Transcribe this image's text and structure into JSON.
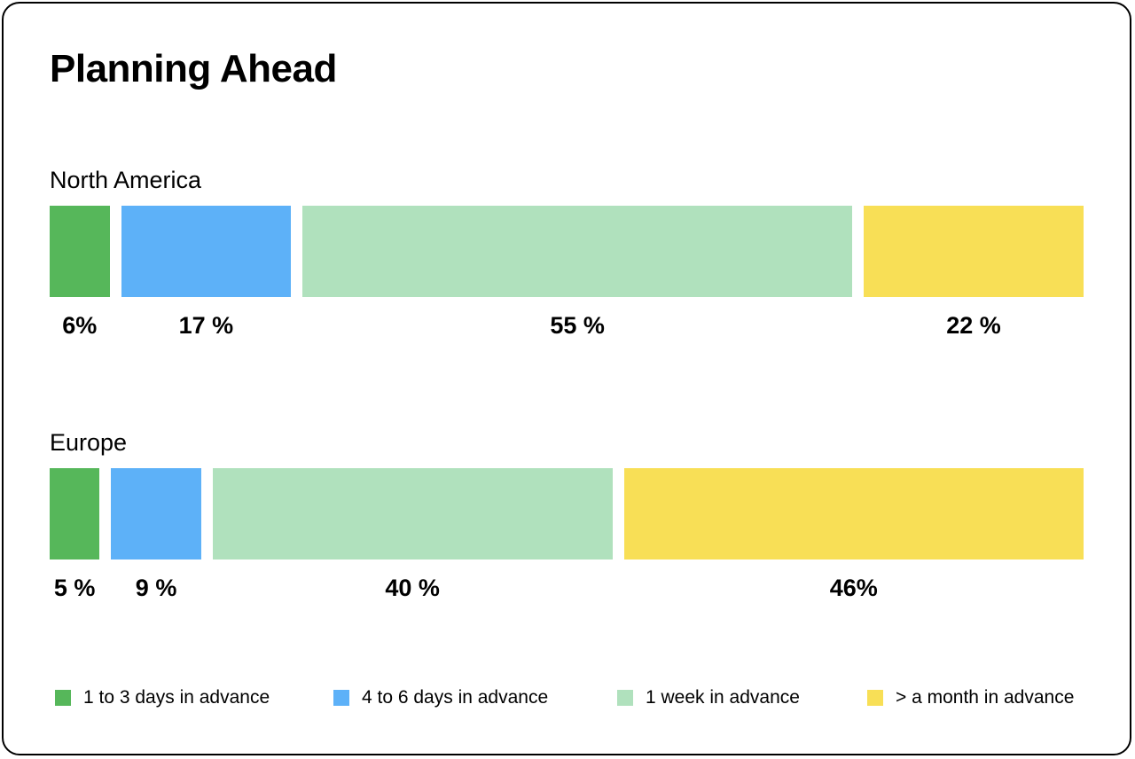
{
  "title": "Planning Ahead",
  "colors": {
    "days_1_3": "#56b75a",
    "days_4_6": "#5db1f8",
    "week_1": "#b0e1bd",
    "month_plus": "#f8df56"
  },
  "chart_data": {
    "type": "bar",
    "stacked": true,
    "orientation": "horizontal",
    "title": "Planning Ahead",
    "categories": [
      "North America",
      "Europe"
    ],
    "series": [
      {
        "name": "1 to 3 days in advance",
        "values": [
          6,
          5
        ],
        "labels": [
          "6%",
          "5 %"
        ],
        "color": "#56b75a"
      },
      {
        "name": "4 to 6 days in advance",
        "values": [
          17,
          9
        ],
        "labels": [
          "17 %",
          "9 %"
        ],
        "color": "#5db1f8"
      },
      {
        "name": "1 week in advance",
        "values": [
          55,
          40
        ],
        "labels": [
          "55 %",
          "40 %"
        ],
        "color": "#b0e1bd"
      },
      {
        "name": "> a month in advance",
        "values": [
          22,
          46
        ],
        "labels": [
          "22 %",
          "46%"
        ],
        "color": "#f8df56"
      }
    ],
    "unit": "%",
    "xlim": [
      0,
      100
    ],
    "grid": false,
    "legend": "bottom"
  }
}
